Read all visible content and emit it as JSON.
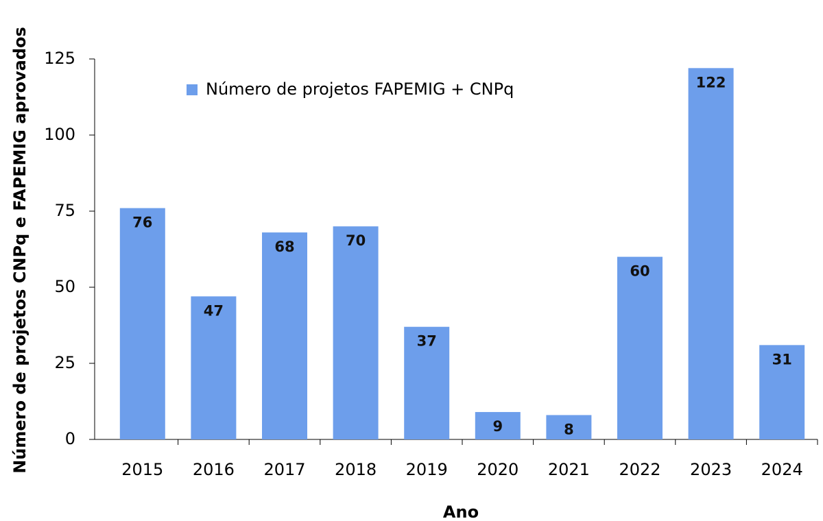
{
  "chart_data": {
    "type": "bar",
    "y_axis_label": "Número de projetos CNPq e FAPEMIG aprovados",
    "x_axis_label": "Ano",
    "categories": [
      "2015",
      "2016",
      "2017",
      "2018",
      "2019",
      "2020",
      "2021",
      "2022",
      "2023",
      "2024"
    ],
    "series": [
      {
        "name": "Número de projetos FAPEMIG + CNPq",
        "color": "#6d9eeb",
        "values": [
          76,
          47,
          68,
          70,
          37,
          9,
          8,
          60,
          122,
          31
        ]
      }
    ],
    "ylim": [
      0,
      125
    ],
    "yticks": [
      0,
      25,
      50,
      75,
      100,
      125
    ],
    "grid": false,
    "legend": "top-left"
  }
}
